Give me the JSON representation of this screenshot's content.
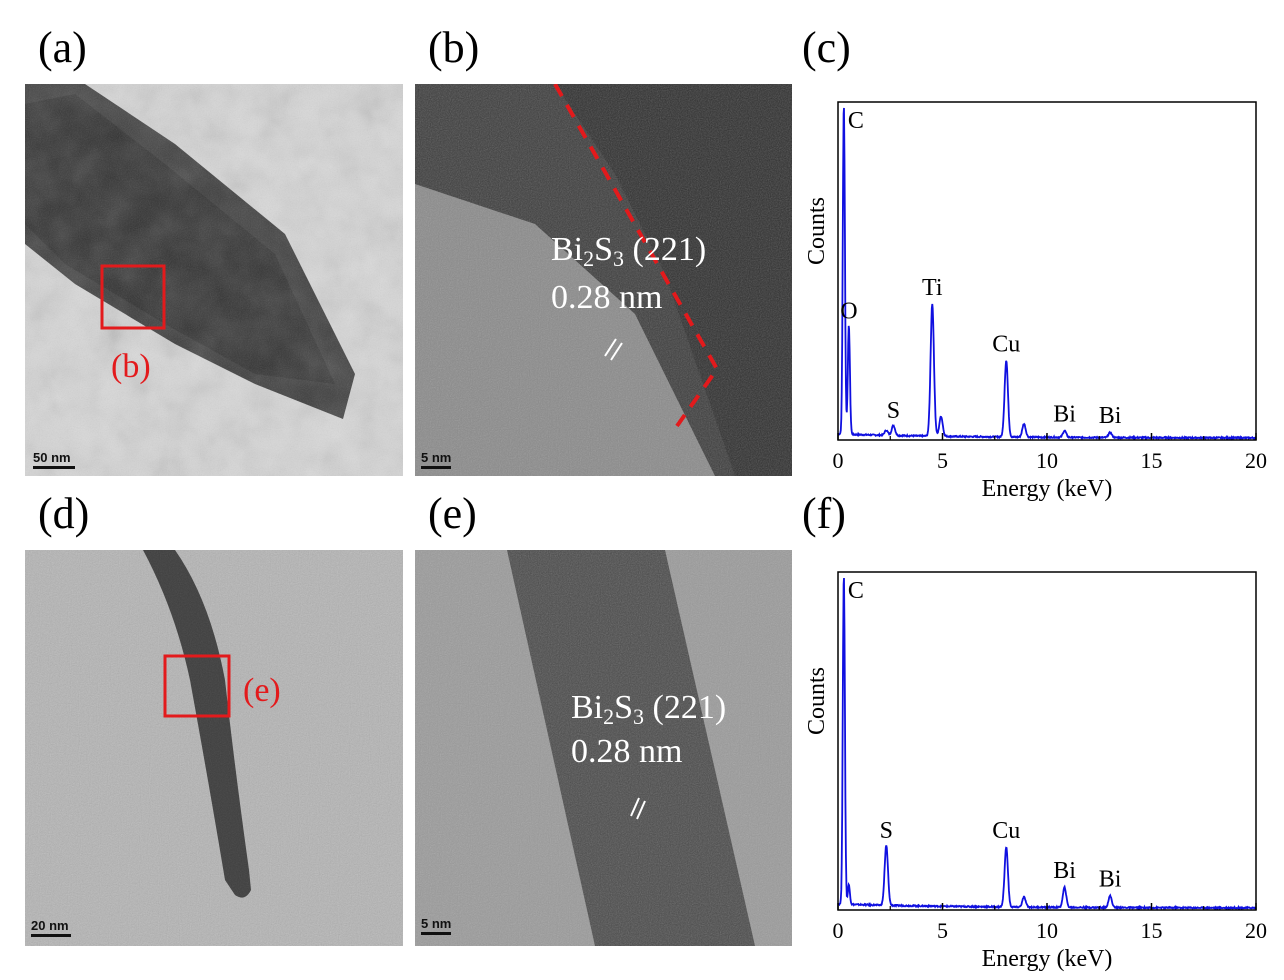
{
  "panels": {
    "a": {
      "label": "(a)",
      "scale": "50 nm",
      "region_label": "(b)"
    },
    "b": {
      "label": "(b)",
      "scale": "5 nm",
      "plane_formula": {
        "el1": "Bi",
        "n1": "2",
        "el2": "S",
        "n2": "3",
        "plane": " (221)"
      },
      "spacing": "0.28 nm"
    },
    "c": {
      "label": "(c)"
    },
    "d": {
      "label": "(d)",
      "scale": "20 nm",
      "region_label": "(e)"
    },
    "e": {
      "label": "(e)",
      "scale": "5 nm",
      "plane_formula": {
        "el1": "Bi",
        "n1": "2",
        "el2": "S",
        "n2": "3",
        "plane": " (221)"
      },
      "spacing": "0.28 nm"
    },
    "f": {
      "label": "(f)"
    }
  },
  "colors": {
    "spectrum": "#1010e0",
    "highlight": "#e31a1c"
  },
  "chart_data": [
    {
      "type": "line",
      "panel": "c",
      "xlabel": "Energy (keV)",
      "ylabel": "Counts",
      "xlim": [
        0,
        20
      ],
      "xticks": [
        0,
        5,
        10,
        15,
        20
      ],
      "ylim": [
        0,
        1
      ],
      "peaks": [
        {
          "x": 0.28,
          "y": 1.0,
          "label": "C"
        },
        {
          "x": 0.52,
          "y": 0.33,
          "label": "O"
        },
        {
          "x": 2.31,
          "y": 0.015,
          "label": ""
        },
        {
          "x": 2.65,
          "y": 0.03,
          "label": "S"
        },
        {
          "x": 4.51,
          "y": 0.4,
          "label": "Ti"
        },
        {
          "x": 4.93,
          "y": 0.06,
          "label": ""
        },
        {
          "x": 8.05,
          "y": 0.23,
          "label": "Cu"
        },
        {
          "x": 8.9,
          "y": 0.04,
          "label": ""
        },
        {
          "x": 10.84,
          "y": 0.02,
          "label": "Bi"
        },
        {
          "x": 13.02,
          "y": 0.015,
          "label": "Bi"
        }
      ]
    },
    {
      "type": "line",
      "panel": "f",
      "xlabel": "Energy (keV)",
      "ylabel": "Counts",
      "xlim": [
        0,
        20
      ],
      "xticks": [
        0,
        5,
        10,
        15,
        20
      ],
      "ylim": [
        0,
        1
      ],
      "peaks": [
        {
          "x": 0.28,
          "y": 1.0,
          "label": "C"
        },
        {
          "x": 0.52,
          "y": 0.06,
          "label": ""
        },
        {
          "x": 2.31,
          "y": 0.18,
          "label": "S"
        },
        {
          "x": 8.05,
          "y": 0.18,
          "label": "Cu"
        },
        {
          "x": 8.9,
          "y": 0.03,
          "label": ""
        },
        {
          "x": 10.84,
          "y": 0.06,
          "label": "Bi"
        },
        {
          "x": 13.02,
          "y": 0.035,
          "label": "Bi"
        }
      ]
    }
  ]
}
